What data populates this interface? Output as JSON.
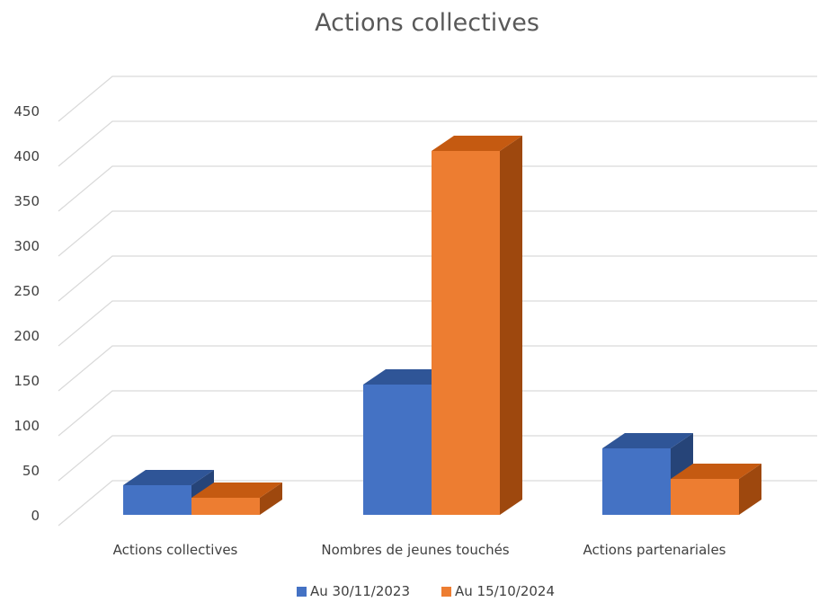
{
  "chart_data": {
    "type": "bar",
    "style": "3d-clustered-column",
    "title": "Actions collectives",
    "categories": [
      "Actions collectives",
      "Nombres de jeunes touchés",
      "Actions partenariales"
    ],
    "series": [
      {
        "name": "Au 30/11/2023",
        "values": [
          33,
          145,
          74
        ],
        "color": "#4472C4",
        "top_color": "#2F5597",
        "side_color": "#264478"
      },
      {
        "name": "Au 15/10/2024",
        "values": [
          19,
          405,
          40
        ],
        "color": "#ED7D31",
        "top_color": "#C55A11",
        "side_color": "#9E480E"
      }
    ],
    "ylim": [
      0,
      450
    ],
    "yticks": [
      0,
      50,
      100,
      150,
      200,
      250,
      300,
      350,
      400,
      450
    ],
    "grid": true,
    "legend": "bottom"
  }
}
